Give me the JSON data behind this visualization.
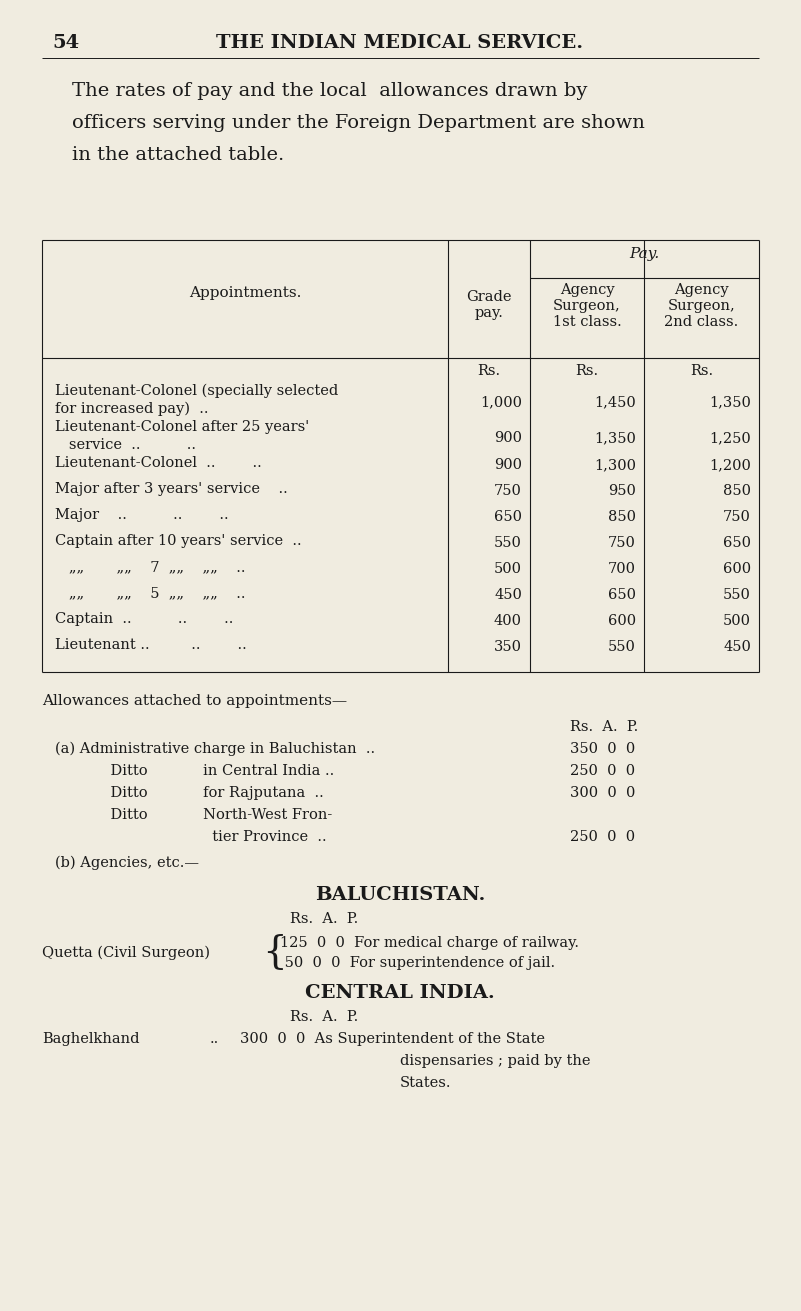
{
  "bg_color": "#f0ece0",
  "text_color": "#1a1a1a",
  "page_number": "54",
  "page_title": "THE INDIAN MEDICAL SERVICE.",
  "intro_lines": [
    "The rates of pay and the local  allowances drawn by",
    "officers serving under the Foreign Department are shown",
    "in the attached table."
  ],
  "table_rows": [
    [
      "Lieutenant-Colonel (specially selected",
      "for increased pay)  ..",
      "1,000",
      "1,450",
      "1,350"
    ],
    [
      "Lieutenant-Colonel after 25 years'",
      "   service  ..          ..",
      "900",
      "1,350",
      "1,250"
    ],
    [
      "Lieutenant-Colonel  ..        ..",
      "",
      "900",
      "1,300",
      "1,200"
    ],
    [
      "Major after 3 years' service    ..",
      "",
      "750",
      "950",
      "850"
    ],
    [
      "Major    ..          ..        ..",
      "",
      "650",
      "850",
      "750"
    ],
    [
      "Captain after 10 years' service  ..",
      "",
      "550",
      "750",
      "650"
    ],
    [
      "   „„       „„    7  „„    „„    ..",
      "",
      "500",
      "700",
      "600"
    ],
    [
      "   „„       „„    5  „„    „„    ..",
      "",
      "450",
      "650",
      "550"
    ],
    [
      "Captain  ..          ..        ..",
      "",
      "400",
      "600",
      "500"
    ],
    [
      "Lieutenant ..         ..        ..",
      "",
      "350",
      "550",
      "450"
    ]
  ],
  "allowances_lines": [
    [
      "(a) Administrative charge in Baluchistan  ..",
      "350  0  0"
    ],
    [
      "            Ditto            in Central India ..",
      "250  0  0"
    ],
    [
      "            Ditto            for Rajputana  ..",
      "300  0  0"
    ],
    [
      "            Ditto            North-West Fron-",
      ""
    ],
    [
      "                                  tier Province  ..",
      "250  0  0"
    ]
  ],
  "b_agencies": "(b) Agencies, etc.—",
  "baluchistan_title": "BALUCHISTAN.",
  "quetta_label": "Quetta (Civil Surgeon)",
  "quetta_line1": "125  0  0  For medical charge of railway.",
  "quetta_line2": " 50  0  0  For superintendence of jail.",
  "central_india_title": "CENTRAL INDIA.",
  "baghelkhand_label": "Baghelkhand",
  "baghelkhand_val": "300  0  0  As Superintendent of the State",
  "baghelkhand_line2": "dispensaries ; paid by the",
  "baghelkhand_line3": "States."
}
